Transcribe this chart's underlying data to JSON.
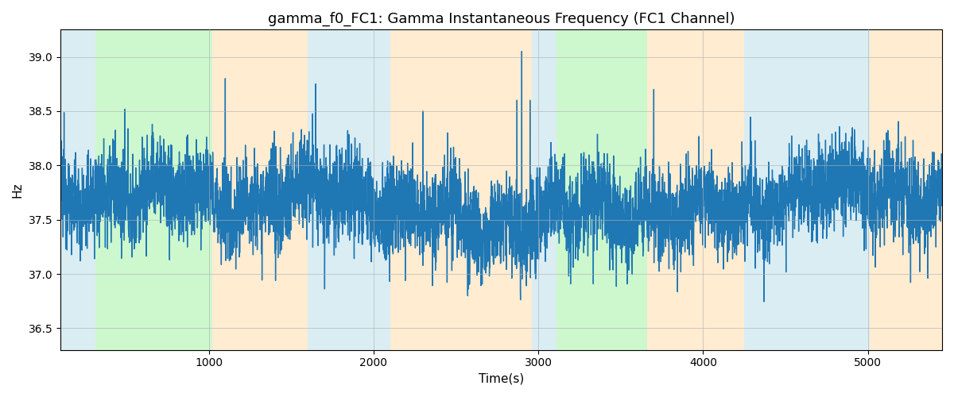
{
  "title": "gamma_f0_FC1: Gamma Instantaneous Frequency (FC1 Channel)",
  "xlabel": "Time(s)",
  "ylabel": "Hz",
  "line_color": "#1f77b4",
  "line_width": 1.0,
  "ylim": [
    36.3,
    39.25
  ],
  "xlim": [
    100,
    5450
  ],
  "xticks": [
    1000,
    2000,
    3000,
    4000,
    5000
  ],
  "yticks": [
    36.5,
    37.0,
    37.5,
    38.0,
    38.5,
    39.0
  ],
  "bg_regions": [
    {
      "xmin": 100,
      "xmax": 310,
      "color": "#add8e6",
      "alpha": 0.45
    },
    {
      "xmin": 310,
      "xmax": 1020,
      "color": "#90ee90",
      "alpha": 0.45
    },
    {
      "xmin": 1020,
      "xmax": 1600,
      "color": "#ffd59b",
      "alpha": 0.45
    },
    {
      "xmin": 1600,
      "xmax": 2100,
      "color": "#add8e6",
      "alpha": 0.45
    },
    {
      "xmin": 2100,
      "xmax": 2960,
      "color": "#ffd59b",
      "alpha": 0.45
    },
    {
      "xmin": 2960,
      "xmax": 3110,
      "color": "#add8e6",
      "alpha": 0.45
    },
    {
      "xmin": 3110,
      "xmax": 3660,
      "color": "#90ee90",
      "alpha": 0.45
    },
    {
      "xmin": 3660,
      "xmax": 4250,
      "color": "#ffd59b",
      "alpha": 0.45
    },
    {
      "xmin": 4250,
      "xmax": 5010,
      "color": "#add8e6",
      "alpha": 0.45
    },
    {
      "xmin": 5010,
      "xmax": 5450,
      "color": "#ffd59b",
      "alpha": 0.45
    }
  ],
  "grid_color": "#b0b0b0",
  "grid_alpha": 0.7,
  "title_fontsize": 13,
  "label_fontsize": 11,
  "tick_fontsize": 10,
  "fig_facecolor": "#ffffff",
  "ax_facecolor": "#ffffff",
  "seed": 12345,
  "n_points": 5350,
  "base_freq": 37.62,
  "noise_std": 0.22,
  "spike_indices": [
    1100,
    1650,
    2300,
    2450,
    2870,
    2900,
    2950,
    3700
  ],
  "spike_values": [
    38.8,
    38.75,
    38.5,
    38.3,
    38.6,
    39.05,
    38.6,
    38.7
  ]
}
